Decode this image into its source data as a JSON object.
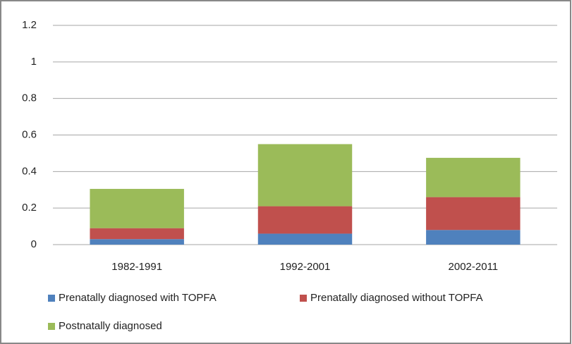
{
  "chart_data": {
    "type": "stacked_bar",
    "categories": [
      "1982-1991",
      "1992-2001",
      "2002-2011"
    ],
    "series": [
      {
        "name": "Prenatally diagnosed with TOPFA",
        "color": "#4f81bd",
        "values": [
          0.03,
          0.06,
          0.08
        ]
      },
      {
        "name": "Prenatally diagnosed without TOPFA",
        "color": "#c0504d",
        "values": [
          0.06,
          0.15,
          0.18
        ]
      },
      {
        "name": "Postnatally diagnosed",
        "color": "#9bbb59",
        "values": [
          0.215,
          0.34,
          0.215
        ]
      }
    ],
    "ylim": [
      0,
      1.2
    ],
    "yticks": [
      0,
      0.2,
      0.4,
      0.6,
      0.8,
      1,
      1.2
    ],
    "grid": true,
    "legend": "bottom"
  }
}
